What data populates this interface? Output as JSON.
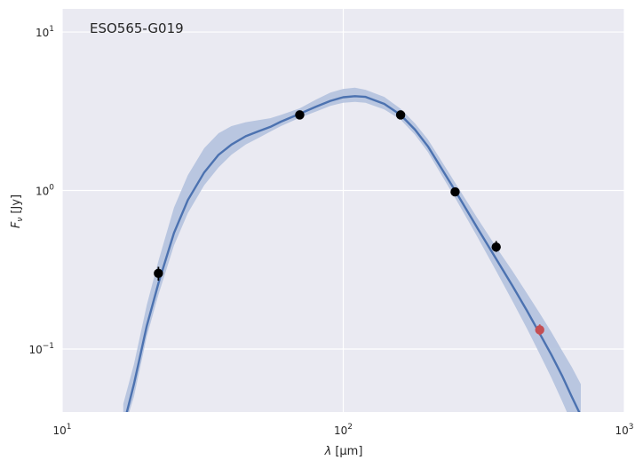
{
  "chart_data": {
    "type": "line",
    "annotation": "ESO565-G019",
    "xlabel_symbol": "λ",
    "xlabel_unit": "[μm]",
    "ylabel_symbol": "F",
    "ylabel_sub": "ν",
    "ylabel_unit": "[Jy]",
    "xscale": "log",
    "yscale": "log",
    "xlim": [
      10,
      1000
    ],
    "ylim": [
      0.04,
      14
    ],
    "grid": true,
    "colors": {
      "background": "#eaeaf2",
      "grid": "#ffffff",
      "model_line": "#4c72b0",
      "model_band": "#b4c2de",
      "detections": "#000000",
      "upper_point": "#c44e52"
    },
    "x_ticks": [
      {
        "value": 10,
        "base": "10",
        "exp": "1"
      },
      {
        "value": 100,
        "base": "10",
        "exp": "2"
      },
      {
        "value": 1000,
        "base": "10",
        "exp": "3"
      }
    ],
    "y_ticks": [
      {
        "value": 0.1,
        "base": "10",
        "exp": "−1"
      },
      {
        "value": 1,
        "base": "10",
        "exp": "0"
      },
      {
        "value": 10,
        "base": "10",
        "exp": "1"
      }
    ],
    "model_curve": [
      {
        "x": 16.3,
        "y": 0.03
      },
      {
        "x": 18,
        "y": 0.06
      },
      {
        "x": 20,
        "y": 0.14
      },
      {
        "x": 22,
        "y": 0.26
      },
      {
        "x": 25,
        "y": 0.54
      },
      {
        "x": 28,
        "y": 0.87
      },
      {
        "x": 32,
        "y": 1.3
      },
      {
        "x": 36,
        "y": 1.68
      },
      {
        "x": 40,
        "y": 1.95
      },
      {
        "x": 45,
        "y": 2.2
      },
      {
        "x": 50,
        "y": 2.37
      },
      {
        "x": 55,
        "y": 2.52
      },
      {
        "x": 60,
        "y": 2.72
      },
      {
        "x": 70,
        "y": 3.05
      },
      {
        "x": 80,
        "y": 3.38
      },
      {
        "x": 90,
        "y": 3.68
      },
      {
        "x": 100,
        "y": 3.88
      },
      {
        "x": 110,
        "y": 3.94
      },
      {
        "x": 120,
        "y": 3.9
      },
      {
        "x": 140,
        "y": 3.52
      },
      {
        "x": 160,
        "y": 3.0
      },
      {
        "x": 180,
        "y": 2.42
      },
      {
        "x": 200,
        "y": 1.9
      },
      {
        "x": 250,
        "y": 1.0
      },
      {
        "x": 300,
        "y": 0.58
      },
      {
        "x": 350,
        "y": 0.37
      },
      {
        "x": 400,
        "y": 0.25
      },
      {
        "x": 450,
        "y": 0.175
      },
      {
        "x": 500,
        "y": 0.125
      },
      {
        "x": 550,
        "y": 0.092
      },
      {
        "x": 600,
        "y": 0.068
      },
      {
        "x": 650,
        "y": 0.05
      },
      {
        "x": 700,
        "y": 0.038
      }
    ],
    "model_band": [
      {
        "x": 16.5,
        "lo": 0.03,
        "hi": 0.045
      },
      {
        "x": 18,
        "lo": 0.05,
        "hi": 0.08
      },
      {
        "x": 20,
        "lo": 0.12,
        "hi": 0.19
      },
      {
        "x": 22,
        "lo": 0.22,
        "hi": 0.36
      },
      {
        "x": 25,
        "lo": 0.45,
        "hi": 0.78
      },
      {
        "x": 28,
        "lo": 0.72,
        "hi": 1.25
      },
      {
        "x": 32,
        "lo": 1.08,
        "hi": 1.85
      },
      {
        "x": 36,
        "lo": 1.4,
        "hi": 2.3
      },
      {
        "x": 40,
        "lo": 1.68,
        "hi": 2.55
      },
      {
        "x": 45,
        "lo": 1.95,
        "hi": 2.7
      },
      {
        "x": 50,
        "lo": 2.15,
        "hi": 2.78
      },
      {
        "x": 55,
        "lo": 2.35,
        "hi": 2.86
      },
      {
        "x": 60,
        "lo": 2.55,
        "hi": 3.0
      },
      {
        "x": 70,
        "lo": 2.88,
        "hi": 3.3
      },
      {
        "x": 80,
        "lo": 3.15,
        "hi": 3.75
      },
      {
        "x": 90,
        "lo": 3.42,
        "hi": 4.15
      },
      {
        "x": 100,
        "lo": 3.58,
        "hi": 4.38
      },
      {
        "x": 110,
        "lo": 3.62,
        "hi": 4.45
      },
      {
        "x": 120,
        "lo": 3.58,
        "hi": 4.32
      },
      {
        "x": 140,
        "lo": 3.25,
        "hi": 3.9
      },
      {
        "x": 160,
        "lo": 2.8,
        "hi": 3.28
      },
      {
        "x": 180,
        "lo": 2.25,
        "hi": 2.65
      },
      {
        "x": 200,
        "lo": 1.75,
        "hi": 2.1
      },
      {
        "x": 250,
        "lo": 0.9,
        "hi": 1.12
      },
      {
        "x": 300,
        "lo": 0.51,
        "hi": 0.67
      },
      {
        "x": 350,
        "lo": 0.31,
        "hi": 0.44
      },
      {
        "x": 400,
        "lo": 0.2,
        "hi": 0.31
      },
      {
        "x": 450,
        "lo": 0.135,
        "hi": 0.225
      },
      {
        "x": 500,
        "lo": 0.093,
        "hi": 0.168
      },
      {
        "x": 550,
        "lo": 0.066,
        "hi": 0.128
      },
      {
        "x": 600,
        "lo": 0.047,
        "hi": 0.098
      },
      {
        "x": 650,
        "lo": 0.034,
        "hi": 0.077
      },
      {
        "x": 700,
        "lo": 0.025,
        "hi": 0.06
      }
    ],
    "detections": [
      {
        "x": 22,
        "y": 0.3,
        "err_lo": 0.27,
        "err_hi": 0.33
      },
      {
        "x": 70,
        "y": 3.0,
        "err_lo": 2.9,
        "err_hi": 3.1
      },
      {
        "x": 160,
        "y": 3.0,
        "err_lo": 2.9,
        "err_hi": 3.1
      },
      {
        "x": 250,
        "y": 0.98,
        "err_lo": 0.92,
        "err_hi": 1.04
      },
      {
        "x": 350,
        "y": 0.44,
        "err_lo": 0.41,
        "err_hi": 0.48
      }
    ],
    "excluded_points": [
      {
        "x": 500,
        "y": 0.132,
        "err_lo": 0.122,
        "err_hi": 0.143
      }
    ]
  }
}
